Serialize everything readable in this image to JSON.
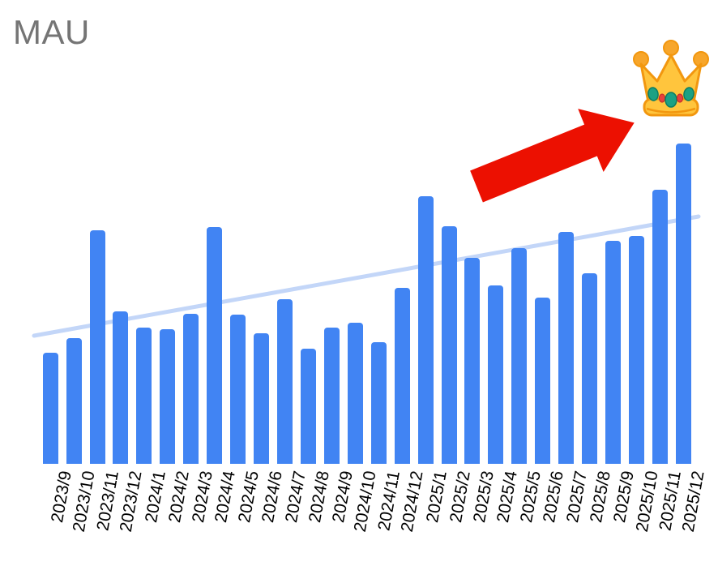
{
  "chart_data": {
    "type": "bar",
    "title": "MAU",
    "title_color": "#757575",
    "categories": [
      "2023/9",
      "2023/10",
      "2023/11",
      "2023/12",
      "2024/1",
      "2024/2",
      "2024/3",
      "2024/4",
      "2024/5",
      "2024/6",
      "2024/7",
      "2024/8",
      "2024/9",
      "2024/10",
      "2024/11",
      "2024/12",
      "2025/1",
      "2025/2",
      "2025/3",
      "2025/4",
      "2025/5",
      "2025/6",
      "2025/7",
      "2025/8",
      "2025/9",
      "2025/10",
      "2025/11",
      "2025/12"
    ],
    "values": [
      137,
      155,
      288,
      188,
      168,
      166,
      185,
      292,
      184,
      161,
      203,
      142,
      168,
      174,
      150,
      217,
      330,
      293,
      254,
      220,
      266,
      205,
      286,
      235,
      275,
      281,
      338,
      395
    ],
    "xlabel": "",
    "ylabel": "",
    "ylim": [
      0,
      420
    ],
    "grid": false,
    "legend": "none",
    "y_axis_labels_visible": false,
    "bar_color": "#4184f3",
    "x_label_color": "#000000",
    "trendline": {
      "visible": true,
      "color": "#c3d6f8",
      "start_value": 158,
      "end_value": 305
    }
  },
  "annotations": {
    "arrow": {
      "meaning": "upward-trend emphasis arrow",
      "color": "#ec1001"
    },
    "crown": {
      "meaning": "crown emoji marking the peak month",
      "body_color": "#FFC53D",
      "outline_color": "#F2970F",
      "ball_color": "#F7A62B",
      "gem_teal": "#1CA184",
      "gem_red": "#E8413C"
    }
  }
}
